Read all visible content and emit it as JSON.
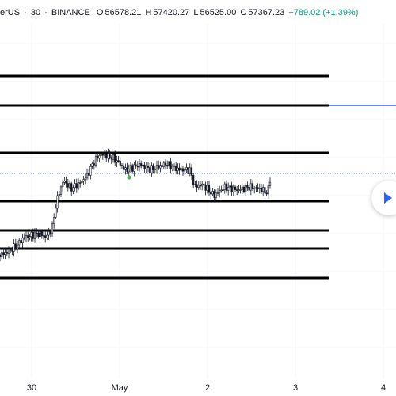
{
  "header": {
    "symbol": "erUS",
    "interval": "30",
    "exchange": "BINANCE",
    "open_label": "O",
    "open": "56578.21",
    "high_label": "H",
    "high": "57420.27",
    "low_label": "L",
    "low": "56525.00",
    "close_label": "C",
    "close": "57367.23",
    "change": "+789.02 (+1.39%)"
  },
  "x_axis": {
    "labels": [
      "30",
      "May",
      "2",
      "3",
      "4"
    ]
  },
  "colors": {
    "background": "#ffffff",
    "grid": "#f0f3fa",
    "candle": "#131722",
    "horizontal_line": "#000000",
    "ray_line": "#2962ff",
    "price_line": "#2962ff",
    "marker": "#4caf50",
    "play_button": "#2962ff"
  },
  "chart_data": {
    "type": "line",
    "x": [
      "30",
      "May",
      "2",
      "3"
    ],
    "horizontal_levels": [
      "level-1",
      "level-2",
      "level-3",
      "level-4",
      "level-5",
      "level-6",
      "level-7"
    ]
  },
  "play_button_icon": "play-icon"
}
